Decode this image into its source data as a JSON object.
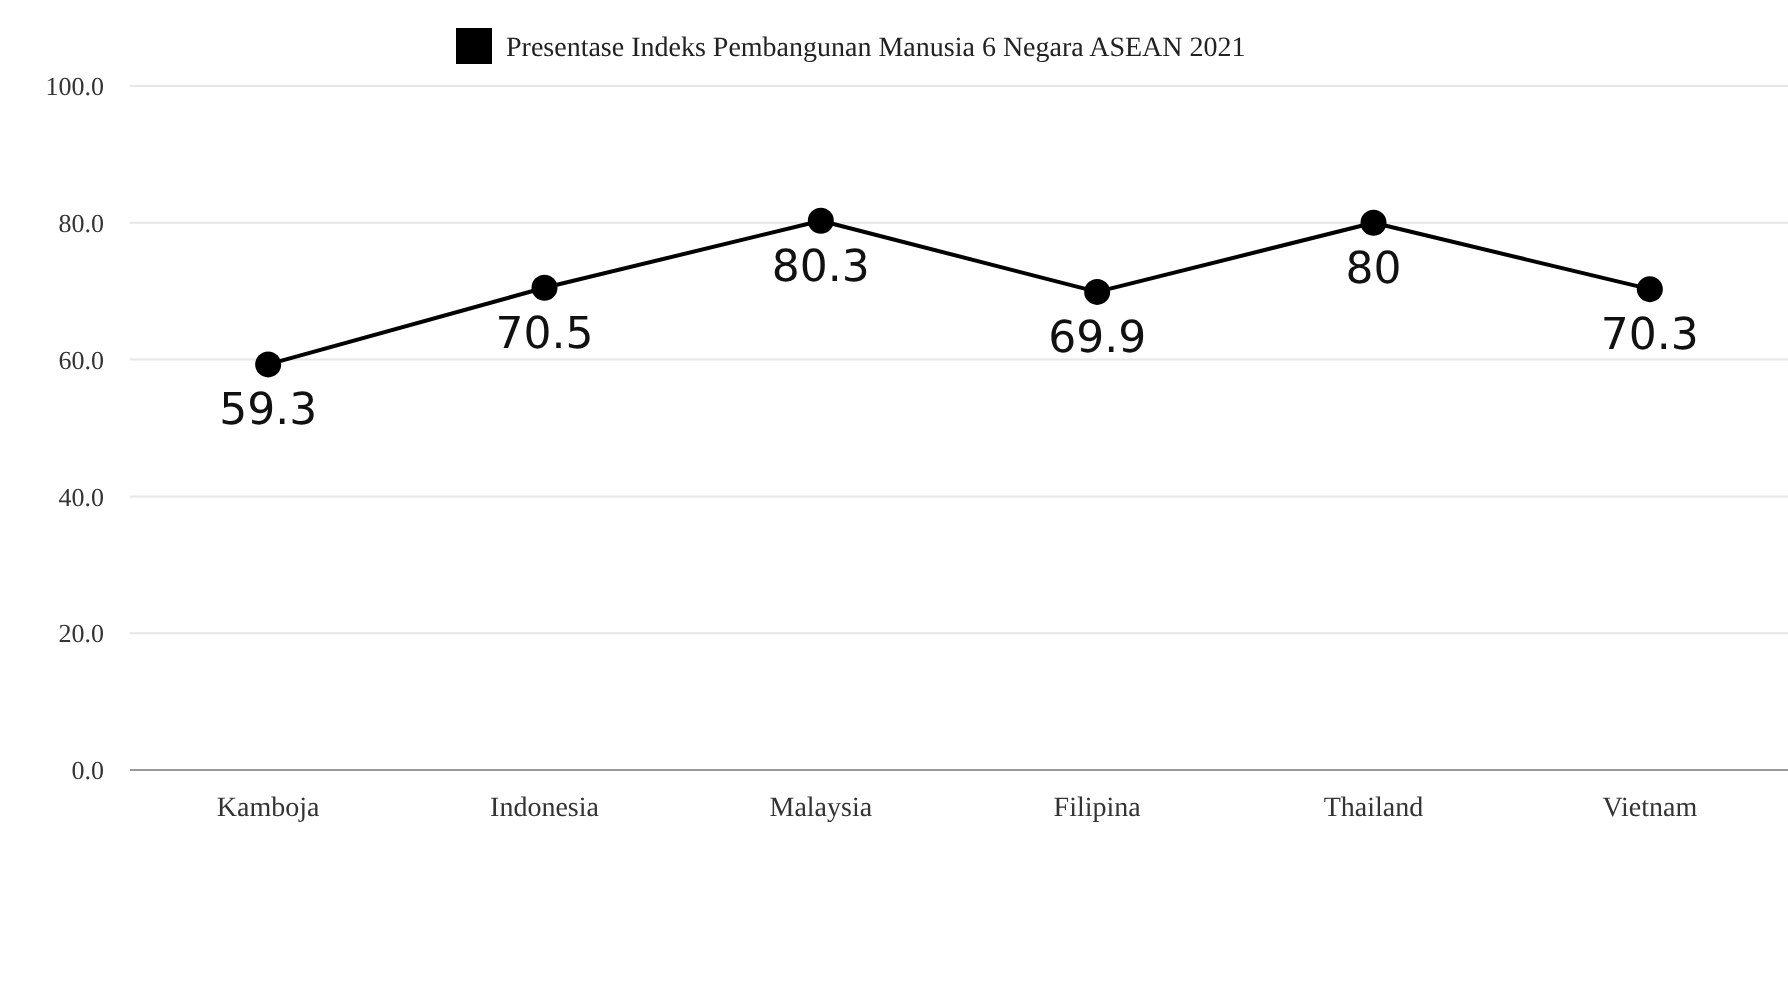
{
  "chart_data": {
    "type": "line",
    "categories": [
      "Kamboja",
      "Indonesia",
      "Malaysia",
      "Filipina",
      "Thailand",
      "Vietnam"
    ],
    "series": [
      {
        "name": "Presentase Indeks Pembangunan Manusia 6 Negara ASEAN 2021",
        "color": "#000000",
        "values": [
          59.3,
          70.5,
          80.3,
          69.9,
          80,
          70.3
        ]
      }
    ],
    "ylim": [
      0,
      100
    ],
    "yticks": [
      {
        "value": 0,
        "label": "0.0"
      },
      {
        "value": 20,
        "label": "20.0"
      },
      {
        "value": 40,
        "label": "40.0"
      },
      {
        "value": 60,
        "label": "60.0"
      },
      {
        "value": 80,
        "label": "80.0"
      },
      {
        "value": 100,
        "label": "100.0"
      }
    ],
    "grid": "y",
    "legend": "top",
    "marker": "circle",
    "line_style": "solid",
    "data_labels": true
  }
}
